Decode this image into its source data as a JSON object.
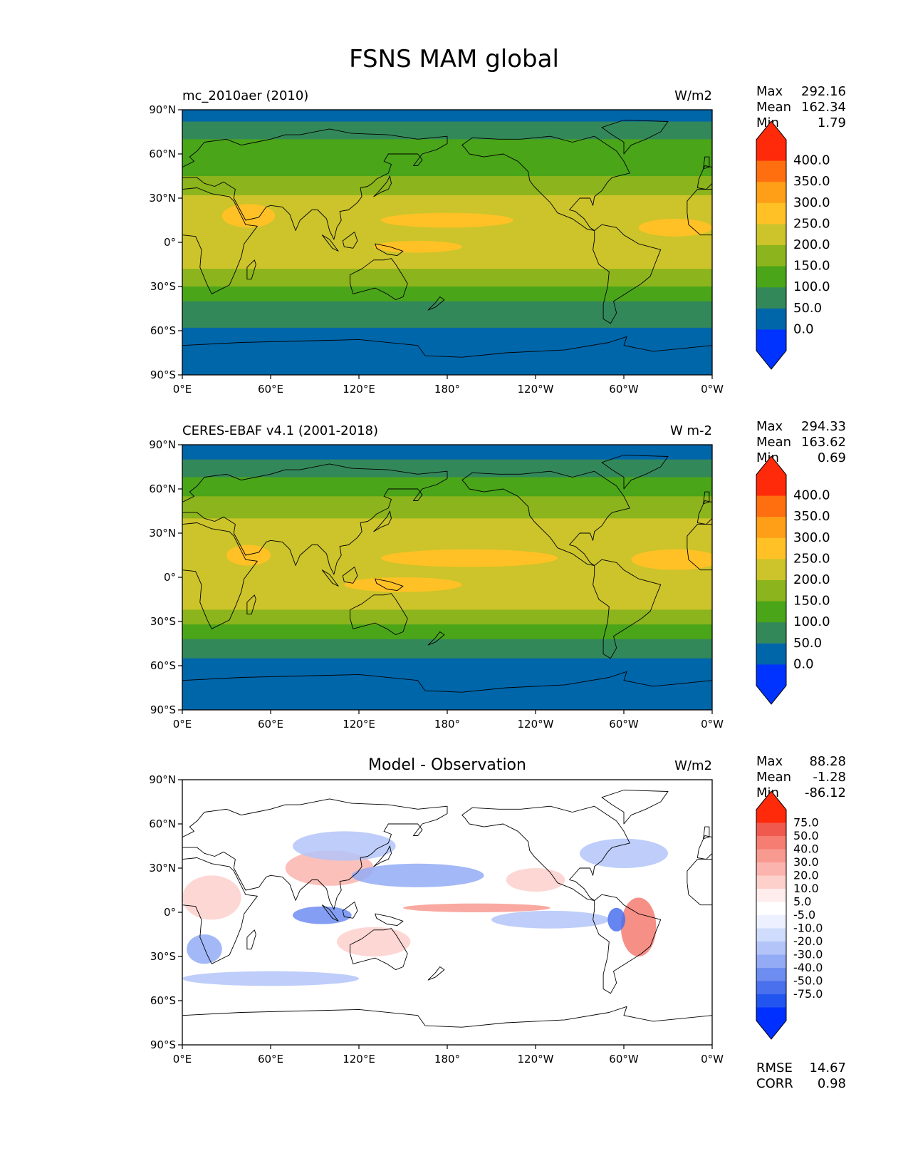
{
  "figure_title": "FSNS MAM global",
  "colors": {
    "cmap_abs": [
      "#0033ff",
      "#0066aa",
      "#33885a",
      "#4aa519",
      "#8cb41c",
      "#ccc42a",
      "#ffc125",
      "#ff9f18",
      "#ff6f10",
      "#ff2a0a"
    ],
    "land_abs": [
      "#0066aa",
      "#0066aa",
      "#33885a",
      "#4aa519",
      "#8cb41c",
      "#ccc42a"
    ],
    "cmap_diff": [
      "#0030ff",
      "#2255f0",
      "#4a70ee",
      "#6d8df0",
      "#93abf5",
      "#b3c4f8",
      "#d0dcfc",
      "#edf1ff",
      "#ffffff",
      "#ffecec",
      "#fdd0cc",
      "#fbb5ae",
      "#f89a90",
      "#f57d72",
      "#f05a4e",
      "#ff2a0a"
    ]
  },
  "chart_data": [
    {
      "type": "heatmap",
      "panel": "test",
      "title_left": "mc_2010aer (2010)",
      "title_center": "",
      "units": "W/m2",
      "xticks": [
        "0°E",
        "60°E",
        "120°E",
        "180°",
        "120°W",
        "60°W",
        "0°W"
      ],
      "yticks": [
        "90°N",
        "60°N",
        "30°N",
        "0°",
        "30°S",
        "60°S",
        "90°S"
      ],
      "xlim": [
        0,
        360
      ],
      "ylim": [
        -90,
        90
      ],
      "stats": [
        {
          "label": "Max",
          "value": "292.16"
        },
        {
          "label": "Mean",
          "value": "162.34"
        },
        {
          "label": "Min",
          "value": "1.79"
        }
      ],
      "colorbar_levels": [
        "400.0",
        "350.0",
        "300.0",
        "250.0",
        "200.0",
        "150.0",
        "100.0",
        "50.0",
        "0.0"
      ],
      "zonal_bands": [
        {
          "lat_from": 90,
          "lat_to": 82,
          "level": 1
        },
        {
          "lat_from": 82,
          "lat_to": 70,
          "level": 2
        },
        {
          "lat_from": 70,
          "lat_to": 58,
          "level": 3
        },
        {
          "lat_from": 58,
          "lat_to": 45,
          "level": 3
        },
        {
          "lat_from": 45,
          "lat_to": 32,
          "level": 4
        },
        {
          "lat_from": 32,
          "lat_to": 20,
          "level": 5
        },
        {
          "lat_from": 20,
          "lat_to": 0,
          "level": 5
        },
        {
          "lat_from": 0,
          "lat_to": -18,
          "level": 5
        },
        {
          "lat_from": -18,
          "lat_to": -30,
          "level": 4
        },
        {
          "lat_from": -30,
          "lat_to": -40,
          "level": 3
        },
        {
          "lat_from": -40,
          "lat_to": -58,
          "level": 2
        },
        {
          "lat_from": -58,
          "lat_to": -90,
          "level": 1
        }
      ],
      "blobs": [
        {
          "lon": 180,
          "lat": 15,
          "dlon": 45,
          "dlat": 5,
          "level": 6
        },
        {
          "lon": 160,
          "lat": -3,
          "dlon": 30,
          "dlat": 4,
          "level": 6
        },
        {
          "lon": 45,
          "lat": 18,
          "dlon": 18,
          "dlat": 8,
          "level": 6
        },
        {
          "lon": 335,
          "lat": 10,
          "dlon": 25,
          "dlat": 6,
          "level": 6
        }
      ]
    },
    {
      "type": "heatmap",
      "panel": "reference",
      "title_left": "CERES-EBAF v4.1 (2001-2018)",
      "title_center": "",
      "units": "W m-2",
      "xticks": [
        "0°E",
        "60°E",
        "120°E",
        "180°",
        "120°W",
        "60°W",
        "0°W"
      ],
      "yticks": [
        "90°N",
        "60°N",
        "30°N",
        "0°",
        "30°S",
        "60°S",
        "90°S"
      ],
      "xlim": [
        0,
        360
      ],
      "ylim": [
        -90,
        90
      ],
      "stats": [
        {
          "label": "Max",
          "value": "294.33"
        },
        {
          "label": "Mean",
          "value": "163.62"
        },
        {
          "label": "Min",
          "value": "0.69"
        }
      ],
      "colorbar_levels": [
        "400.0",
        "350.0",
        "300.0",
        "250.0",
        "200.0",
        "150.0",
        "100.0",
        "50.0",
        "0.0"
      ],
      "zonal_bands": [
        {
          "lat_from": 90,
          "lat_to": 80,
          "level": 1
        },
        {
          "lat_from": 80,
          "lat_to": 68,
          "level": 2
        },
        {
          "lat_from": 68,
          "lat_to": 55,
          "level": 3
        },
        {
          "lat_from": 55,
          "lat_to": 40,
          "level": 4
        },
        {
          "lat_from": 40,
          "lat_to": 28,
          "level": 5
        },
        {
          "lat_from": 28,
          "lat_to": 0,
          "level": 5
        },
        {
          "lat_from": 0,
          "lat_to": -22,
          "level": 5
        },
        {
          "lat_from": -22,
          "lat_to": -32,
          "level": 4
        },
        {
          "lat_from": -32,
          "lat_to": -42,
          "level": 3
        },
        {
          "lat_from": -42,
          "lat_to": -55,
          "level": 2
        },
        {
          "lat_from": -55,
          "lat_to": -90,
          "level": 1
        }
      ],
      "blobs": [
        {
          "lon": 195,
          "lat": 13,
          "dlon": 60,
          "dlat": 6,
          "level": 6
        },
        {
          "lon": 150,
          "lat": -5,
          "dlon": 40,
          "dlat": 5,
          "level": 6
        },
        {
          "lon": 45,
          "lat": 15,
          "dlon": 15,
          "dlat": 7,
          "level": 6
        },
        {
          "lon": 335,
          "lat": 12,
          "dlon": 30,
          "dlat": 7,
          "level": 6
        }
      ]
    },
    {
      "type": "heatmap",
      "panel": "difference",
      "title_left": "",
      "title_center": "Model - Observation",
      "units": "W/m2",
      "xticks": [
        "0°E",
        "60°E",
        "120°E",
        "180°",
        "120°W",
        "60°W",
        "0°W"
      ],
      "yticks": [
        "90°N",
        "60°N",
        "30°N",
        "0°",
        "30°S",
        "60°S",
        "90°S"
      ],
      "xlim": [
        0,
        360
      ],
      "ylim": [
        -90,
        90
      ],
      "stats": [
        {
          "label": "Max",
          "value": "88.28"
        },
        {
          "label": "Mean",
          "value": "-1.28"
        },
        {
          "label": "Min",
          "value": "-86.12"
        }
      ],
      "extra_stats": [
        {
          "label": "RMSE",
          "value": "14.67"
        },
        {
          "label": "CORR",
          "value": "0.98"
        }
      ],
      "colorbar_levels": [
        "75.0",
        "50.0",
        "40.0",
        "30.0",
        "20.0",
        "10.0",
        "5.0",
        "-5.0",
        "-10.0",
        "-20.0",
        "-30.0",
        "-40.0",
        "-50.0",
        "-75.0"
      ],
      "blobs": [
        {
          "lon": 200,
          "lat": 3,
          "dlon": 50,
          "dlat": 3,
          "level": 12
        },
        {
          "lon": 310,
          "lat": -10,
          "dlon": 12,
          "dlat": 20,
          "level": 13
        },
        {
          "lon": 100,
          "lat": 30,
          "dlon": 30,
          "dlat": 12,
          "level": 11
        },
        {
          "lon": 20,
          "lat": 10,
          "dlon": 20,
          "dlat": 15,
          "level": 10
        },
        {
          "lon": 130,
          "lat": -20,
          "dlon": 25,
          "dlat": 10,
          "level": 10
        },
        {
          "lon": 240,
          "lat": 22,
          "dlon": 20,
          "dlat": 8,
          "level": 10
        },
        {
          "lon": 95,
          "lat": -2,
          "dlon": 20,
          "dlat": 6,
          "level": 3
        },
        {
          "lon": 160,
          "lat": 25,
          "dlon": 45,
          "dlat": 8,
          "level": 4
        },
        {
          "lon": 110,
          "lat": 45,
          "dlon": 35,
          "dlat": 10,
          "level": 5
        },
        {
          "lon": 250,
          "lat": -5,
          "dlon": 40,
          "dlat": 6,
          "level": 5
        },
        {
          "lon": 15,
          "lat": -25,
          "dlon": 12,
          "dlat": 10,
          "level": 4
        },
        {
          "lon": 60,
          "lat": -45,
          "dlon": 60,
          "dlat": 5,
          "level": 5
        },
        {
          "lon": 300,
          "lat": 40,
          "dlon": 30,
          "dlat": 10,
          "level": 5
        },
        {
          "lon": 295,
          "lat": -5,
          "dlon": 6,
          "dlat": 8,
          "level": 2
        }
      ]
    }
  ]
}
